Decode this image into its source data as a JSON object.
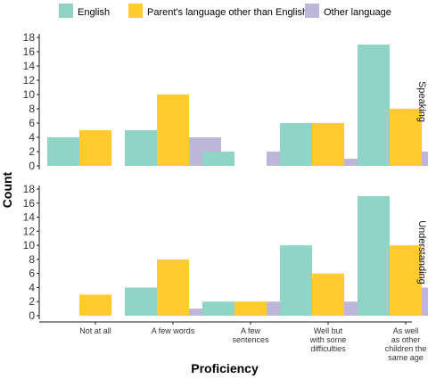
{
  "chart_data": {
    "type": "bar",
    "xlabel": "Proficiency",
    "ylabel": "Count",
    "ylim": [
      0,
      18
    ],
    "yticks": [
      0,
      2,
      4,
      6,
      8,
      10,
      12,
      14,
      16,
      18
    ],
    "grid": false,
    "legend_position": "top",
    "categories": [
      [
        "Not at all"
      ],
      [
        "A few words"
      ],
      [
        "A few",
        "sentences"
      ],
      [
        "Well but",
        "with some",
        "difficulties"
      ],
      [
        "As well",
        "as other",
        "children the",
        "same age"
      ]
    ],
    "series": [
      {
        "name": "English",
        "color": "#8fd4c6"
      },
      {
        "name": "Parent's language other than English",
        "color": "#ffcb2f"
      },
      {
        "name": "Other language",
        "color": "#bcb7d8"
      }
    ],
    "panels": [
      {
        "label": "Speaking",
        "values": [
          [
            4,
            5,
            0
          ],
          [
            5,
            10,
            4
          ],
          [
            2,
            0,
            2
          ],
          [
            6,
            6,
            1
          ],
          [
            17,
            8,
            2
          ]
        ]
      },
      {
        "label": "Understanding",
        "values": [
          [
            0,
            3,
            0
          ],
          [
            4,
            8,
            1
          ],
          [
            2,
            2,
            2
          ],
          [
            10,
            6,
            2
          ],
          [
            17,
            10,
            4
          ]
        ]
      }
    ]
  }
}
